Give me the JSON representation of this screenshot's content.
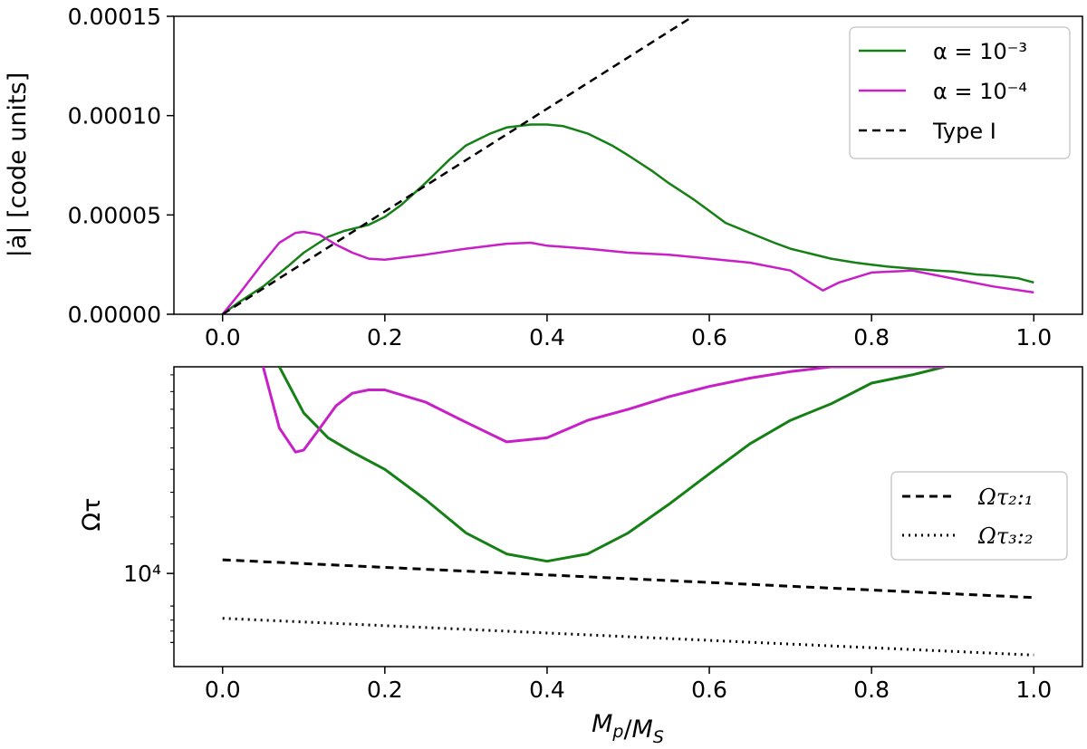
{
  "colors": {
    "alpha3": "#158015",
    "alpha4": "#c81fc8",
    "reference": "#000000",
    "frame": "#000000"
  },
  "chart_data": [
    {
      "type": "line",
      "panel": "top",
      "xlabel": "",
      "ylabel": "|ȧ| [code units]",
      "xlim": [
        -0.06,
        1.06
      ],
      "ylim": [
        0,
        0.00015
      ],
      "x_ticks": [
        0.0,
        0.2,
        0.4,
        0.6,
        0.8,
        1.0
      ],
      "x_tick_labels": [
        "0.0",
        "0.2",
        "0.4",
        "0.6",
        "0.8",
        "1.0"
      ],
      "y_ticks": [
        0,
        5e-05,
        0.0001,
        0.00015
      ],
      "y_tick_labels": [
        "0.00000",
        "0.00005",
        "0.00010",
        "0.00015"
      ],
      "grid": false,
      "legend_position": "top-right",
      "legend": [
        "α = 10⁻³",
        "α = 10⁻⁴",
        "Type I"
      ],
      "series": [
        {
          "name": "α = 10⁻³",
          "style": "solid",
          "x": [
            0.0,
            0.02,
            0.05,
            0.08,
            0.1,
            0.13,
            0.15,
            0.18,
            0.2,
            0.22,
            0.25,
            0.28,
            0.3,
            0.33,
            0.35,
            0.38,
            0.4,
            0.42,
            0.45,
            0.48,
            0.5,
            0.53,
            0.55,
            0.58,
            0.6,
            0.62,
            0.65,
            0.68,
            0.7,
            0.72,
            0.75,
            0.78,
            0.8,
            0.82,
            0.85,
            0.88,
            0.9,
            0.93,
            0.95,
            0.98,
            1.0
          ],
          "y": [
            0.0,
            6e-06,
            1.4e-05,
            2.4e-05,
            3.1e-05,
            3.9e-05,
            4.2e-05,
            4.5e-05,
            4.9e-05,
            5.5e-05,
            6.6e-05,
            7.8e-05,
            8.5e-05,
            9.1e-05,
            9.4e-05,
            9.55e-05,
            9.55e-05,
            9.47e-05,
            9.1e-05,
            8.5e-05,
            8e-05,
            7.2e-05,
            6.6e-05,
            5.8e-05,
            5.2e-05,
            4.6e-05,
            4.1e-05,
            3.6e-05,
            3.3e-05,
            3.1e-05,
            2.8e-05,
            2.6e-05,
            2.5e-05,
            2.4e-05,
            2.3e-05,
            2.2e-05,
            2.15e-05,
            2e-05,
            1.95e-05,
            1.82e-05,
            1.6e-05
          ]
        },
        {
          "name": "α = 10⁻⁴",
          "style": "solid",
          "x": [
            0.0,
            0.02,
            0.05,
            0.07,
            0.09,
            0.1,
            0.12,
            0.14,
            0.16,
            0.18,
            0.2,
            0.25,
            0.3,
            0.35,
            0.38,
            0.4,
            0.45,
            0.5,
            0.55,
            0.6,
            0.65,
            0.7,
            0.72,
            0.74,
            0.76,
            0.8,
            0.85,
            0.9,
            0.95,
            1.0
          ],
          "y": [
            0.0,
            1e-05,
            2.6e-05,
            3.6e-05,
            4.1e-05,
            4.15e-05,
            4e-05,
            3.5e-05,
            3.1e-05,
            2.8e-05,
            2.75e-05,
            3e-05,
            3.3e-05,
            3.55e-05,
            3.6e-05,
            3.45e-05,
            3.3e-05,
            3.1e-05,
            3e-05,
            2.8e-05,
            2.6e-05,
            2.2e-05,
            1.7e-05,
            1.2e-05,
            1.6e-05,
            2.1e-05,
            2.2e-05,
            1.8e-05,
            1.4e-05,
            1.1e-05
          ]
        },
        {
          "name": "Type I",
          "style": "dashed",
          "x": [
            0.0,
            0.58
          ],
          "y": [
            0.0,
            0.00015
          ]
        }
      ]
    },
    {
      "type": "line",
      "panel": "bottom",
      "xlabel": "M_p/M_S",
      "ylabel": "Ωτ",
      "yscale": "log",
      "xlim": [
        -0.06,
        1.06
      ],
      "ylim": [
        7400,
        19500
      ],
      "x_ticks": [
        0.0,
        0.2,
        0.4,
        0.6,
        0.8,
        1.0
      ],
      "x_tick_labels": [
        "0.0",
        "0.2",
        "0.4",
        "0.6",
        "0.8",
        "1.0"
      ],
      "y_major_ticks": [
        10000
      ],
      "y_tick_labels": [
        "10⁴"
      ],
      "y_minor_ticks": [
        8000,
        9000
      ],
      "grid": false,
      "legend_position": "center-right",
      "legend": [
        "Ωτ₂:₁",
        "Ωτ₃:₂"
      ],
      "series": [
        {
          "name": "α = 10⁻³",
          "style": "solid",
          "x": [
            0.07,
            0.1,
            0.13,
            0.16,
            0.2,
            0.25,
            0.3,
            0.35,
            0.4,
            0.45,
            0.5,
            0.55,
            0.6,
            0.65,
            0.7,
            0.75,
            0.8,
            0.85,
            0.89
          ],
          "y": [
            19500,
            16800,
            15500,
            14800,
            14000,
            12700,
            11400,
            10650,
            10400,
            10650,
            11400,
            12500,
            13800,
            15200,
            16400,
            17300,
            18500,
            19000,
            19500
          ]
        },
        {
          "name": "α = 10⁻⁴",
          "style": "solid",
          "x": [
            0.05,
            0.07,
            0.09,
            0.1,
            0.12,
            0.14,
            0.16,
            0.18,
            0.2,
            0.25,
            0.3,
            0.35,
            0.4,
            0.45,
            0.5,
            0.55,
            0.6,
            0.65,
            0.7,
            0.75,
            0.8,
            0.85,
            0.89
          ],
          "y": [
            19500,
            16000,
            14800,
            14900,
            16000,
            17200,
            17900,
            18100,
            18100,
            17400,
            16300,
            15300,
            15500,
            16400,
            17000,
            17700,
            18300,
            18800,
            19200,
            19500,
            19500,
            19500,
            19500
          ]
        },
        {
          "name": "Ωτ₂:₁",
          "style": "dashed",
          "x": [
            0.0,
            1.0
          ],
          "y": [
            10450,
            9250
          ]
        },
        {
          "name": "Ωτ₃:₂",
          "style": "dotted",
          "x": [
            0.0,
            1.0
          ],
          "y": [
            8650,
            7680
          ]
        }
      ]
    }
  ]
}
